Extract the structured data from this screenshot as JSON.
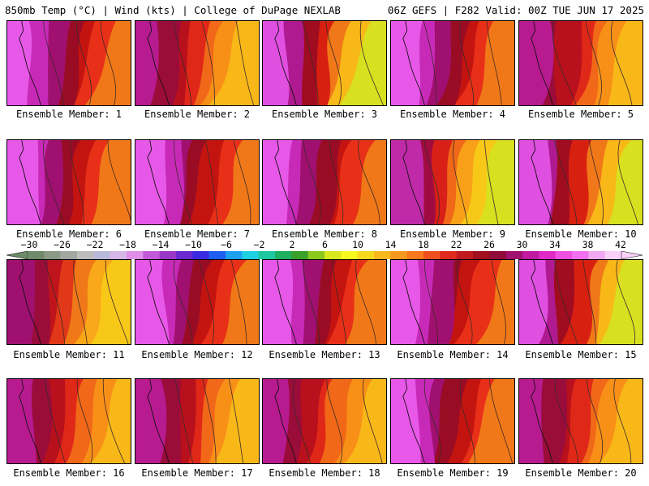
{
  "header": {
    "title_left": "850mb Temp (°C) | Wind (kts) | College of DuPage NEXLAB",
    "title_right": "06Z GEFS | F282 Valid: 00Z TUE JUN 17 2025"
  },
  "panels": [
    {
      "label": "Ensemble Member: 1",
      "style": "hotwest"
    },
    {
      "label": "Ensemble Member: 2",
      "style": "warm"
    },
    {
      "label": "Ensemble Member: 3",
      "style": "hotwest_cool_ne"
    },
    {
      "label": "Ensemble Member: 4",
      "style": "hotwest"
    },
    {
      "label": "Ensemble Member: 5",
      "style": "warm"
    },
    {
      "label": "Ensemble Member: 6",
      "style": "hotwest"
    },
    {
      "label": "Ensemble Member: 7",
      "style": "hotwest"
    },
    {
      "label": "Ensemble Member: 8",
      "style": "hotwest"
    },
    {
      "label": "Ensemble Member: 9",
      "style": "mild_cool_ne"
    },
    {
      "label": "Ensemble Member: 10",
      "style": "hotwest_cool_ne"
    },
    {
      "label": "Ensemble Member: 11",
      "style": "mild"
    },
    {
      "label": "Ensemble Member: 12",
      "style": "hotwest"
    },
    {
      "label": "Ensemble Member: 13",
      "style": "hotwest"
    },
    {
      "label": "Ensemble Member: 14",
      "style": "hotwest"
    },
    {
      "label": "Ensemble Member: 15",
      "style": "hotwest_cool_ne"
    },
    {
      "label": "Ensemble Member: 16",
      "style": "warm"
    },
    {
      "label": "Ensemble Member: 17",
      "style": "warm"
    },
    {
      "label": "Ensemble Member: 18",
      "style": "warm"
    },
    {
      "label": "Ensemble Member: 19",
      "style": "hotwest"
    },
    {
      "label": "Ensemble Member: 20",
      "style": "warm"
    }
  ],
  "colorbar": {
    "ticks": [
      "−30",
      "−26",
      "−22",
      "−18",
      "−14",
      "−10",
      "−6",
      "−2",
      "2",
      "6",
      "10",
      "14",
      "18",
      "22",
      "26",
      "30",
      "34",
      "38",
      "42"
    ],
    "colors": [
      "#6f8a6b",
      "#8a9a86",
      "#a2a8a0",
      "#bdbdbd",
      "#b8b8d8",
      "#d6b8e8",
      "#e08ee8",
      "#c25ad8",
      "#9a38c8",
      "#6a2ad0",
      "#3a2ae0",
      "#1e5ef0",
      "#1ea0f0",
      "#1ed0e0",
      "#1ec8a0",
      "#1eb060",
      "#3aa02a",
      "#8ac81e",
      "#d8e81e",
      "#f8f81e",
      "#f8d81e",
      "#f8b81e",
      "#f8981e",
      "#f8781e",
      "#f0501e",
      "#e02a1e",
      "#c01a1e",
      "#a0101e",
      "#900a3a",
      "#a01070",
      "#c01aa0",
      "#e02ac8",
      "#f050e0",
      "#f070f0",
      "#f0a8f0",
      "#f8d0f8"
    ]
  }
}
